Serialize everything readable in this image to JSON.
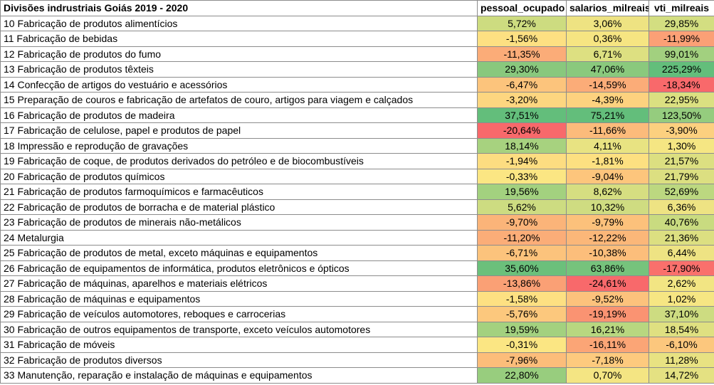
{
  "table": {
    "headers": [
      "Divisões indrustriais Goiás 2019 - 2020",
      "pessoal_ocupado",
      "salarios_milreais",
      "vti_milreais"
    ],
    "rows": [
      {
        "division": "10 Fabricação de produtos alimentícios",
        "pessoal_ocupado": "5,72%",
        "salarios_milreais": "3,06%",
        "vti_milreais": "29,85%",
        "colors": [
          "#cddc80",
          "#eee382",
          "#d3de81"
        ]
      },
      {
        "division": "11 Fabricação de bebidas",
        "pessoal_ocupado": "-1,56%",
        "salarios_milreais": "0,36%",
        "vti_milreais": "-11,99%",
        "colors": [
          "#fde082",
          "#f6e582",
          "#fba076"
        ]
      },
      {
        "division": "12 Fabricação de produtos do fumo",
        "pessoal_ocupado": "-11,35%",
        "salarios_milreais": "6,71%",
        "vti_milreais": "99,01%",
        "colors": [
          "#fbac78",
          "#dde081",
          "#a2d07f"
        ]
      },
      {
        "division": "13 Fabricação de produtos têxteis",
        "pessoal_ocupado": "29,30%",
        "salarios_milreais": "47,06%",
        "vti_milreais": "225,29%",
        "colors": [
          "#89c87d",
          "#8ac97d",
          "#63be7b"
        ]
      },
      {
        "division": "14 Confecção de artigos do vestuário e acessórios",
        "pessoal_ocupado": "-6,47%",
        "salarios_milreais": "-14,59%",
        "vti_milreais": "-18,34%",
        "colors": [
          "#fcc47c",
          "#fbac78",
          "#f8696b"
        ]
      },
      {
        "division": "15 Preparação de couros e fabricação de artefatos de couro, artigos para viagem e calçados",
        "pessoal_ocupado": "-3,20%",
        "salarios_milreais": "-4,39%",
        "vti_milreais": "22,95%",
        "colors": [
          "#fdd680",
          "#fdd27f",
          "#dbe081"
        ]
      },
      {
        "division": "16 Fabricação de produtos de madeira",
        "pessoal_ocupado": "37,51%",
        "salarios_milreais": "75,21%",
        "vti_milreais": "123,50%",
        "colors": [
          "#63be7b",
          "#63be7b",
          "#95cc7e"
        ]
      },
      {
        "division": "17 Fabricação de celulose, papel e produtos de papel",
        "pessoal_ocupado": "-20,64%",
        "salarios_milreais": "-11,66%",
        "vti_milreais": "-3,90%",
        "colors": [
          "#f8696b",
          "#fcbb7b",
          "#fcd07f"
        ]
      },
      {
        "division": "18 Impressão e reprodução de gravações",
        "pessoal_ocupado": "18,14%",
        "salarios_milreais": "4,11%",
        "vti_milreais": "1,30%",
        "colors": [
          "#a7d27f",
          "#e8e382",
          "#f5e683"
        ]
      },
      {
        "division": "19 Fabricação de coque, de produtos derivados do petróleo e de biocombustíveis",
        "pessoal_ocupado": "-1,94%",
        "salarios_milreais": "-1,81%",
        "vti_milreais": "21,57%",
        "colors": [
          "#fddd81",
          "#fde081",
          "#dcdf81"
        ]
      },
      {
        "division": "20 Fabricação de produtos químicos",
        "pessoal_ocupado": "-0,33%",
        "salarios_milreais": "-9,04%",
        "vti_milreais": "21,79%",
        "colors": [
          "#fbe683",
          "#fdc57c",
          "#dcdf81"
        ]
      },
      {
        "division": "21 Fabricação de produtos farmoquímicos e farmacêuticos",
        "pessoal_ocupado": "19,56%",
        "salarios_milreais": "8,62%",
        "vti_milreais": "52,69%",
        "colors": [
          "#a3d17f",
          "#d6de81",
          "#bcd880"
        ]
      },
      {
        "division": "22 Fabricação de produtos de borracha e de material plástico",
        "pessoal_ocupado": "5,62%",
        "salarios_milreais": "10,32%",
        "vti_milreais": "6,36%",
        "colors": [
          "#cddc81",
          "#cfdc81",
          "#eee383"
        ]
      },
      {
        "division": "23 Fabricação de produtos de minerais não-metálicos",
        "pessoal_ocupado": "-9,70%",
        "salarios_milreais": "-9,79%",
        "vti_milreais": "40,76%",
        "colors": [
          "#fbb479",
          "#fcc17b",
          "#c9db80"
        ]
      },
      {
        "division": "24 Metalurgia",
        "pessoal_ocupado": "-11,20%",
        "salarios_milreais": "-12,22%",
        "vti_milreais": "21,36%",
        "colors": [
          "#fbad78",
          "#fbb779",
          "#dcdf81"
        ]
      },
      {
        "division": "25 Fabricação de produtos de metal, exceto máquinas e equipamentos",
        "pessoal_ocupado": "-6,71%",
        "salarios_milreais": "-10,38%",
        "vti_milreais": "6,44%",
        "colors": [
          "#fcc37c",
          "#fcbe7b",
          "#eee383"
        ]
      },
      {
        "division": "26 Fabricação de equipamentos de informática, produtos eletrônicos e ópticos",
        "pessoal_ocupado": "35,60%",
        "salarios_milreais": "63,86%",
        "vti_milreais": "-17,90%",
        "colors": [
          "#6bc07b",
          "#76c37c",
          "#f9706c"
        ]
      },
      {
        "division": "27 Fabricação de máquinas, aparelhos e materiais elétricos",
        "pessoal_ocupado": "-13,86%",
        "salarios_milreais": "-24,61%",
        "vti_milreais": "2,62%",
        "colors": [
          "#faa075",
          "#f8696b",
          "#f2e583"
        ]
      },
      {
        "division": "28 Fabricação de máquinas e equipamentos",
        "pessoal_ocupado": "-1,58%",
        "salarios_milreais": "-9,52%",
        "vti_milreais": "1,02%",
        "colors": [
          "#fde082",
          "#fcc27c",
          "#f6e683"
        ]
      },
      {
        "division": "29 Fabricação de veículos automotores, reboques e carrocerias",
        "pessoal_ocupado": "-5,76%",
        "salarios_milreais": "-19,19%",
        "vti_milreais": "37,10%",
        "colors": [
          "#fcc87d",
          "#fa9372",
          "#cddc81"
        ]
      },
      {
        "division": "30 Fabricação de outros equipamentos de transporte, exceto veículos automotores",
        "pessoal_ocupado": "19,59%",
        "salarios_milreais": "16,21%",
        "vti_milreais": "18,54%",
        "colors": [
          "#a3d17f",
          "#b8d780",
          "#dfe081"
        ]
      },
      {
        "division": "31 Fabricação de móveis",
        "pessoal_ocupado": "-0,31%",
        "salarios_milreais": "-16,11%",
        "vti_milreais": "-6,10%",
        "colors": [
          "#fbe683",
          "#fba576",
          "#fcc77d"
        ]
      },
      {
        "division": "32 Fabricação de produtos diversos",
        "pessoal_ocupado": "-7,96%",
        "salarios_milreais": "-7,18%",
        "vti_milreais": "11,28%",
        "colors": [
          "#fcbd7a",
          "#fdca7e",
          "#e8e282"
        ]
      },
      {
        "division": "33 Manutenção, reparação e instalação de máquinas e equipamentos",
        "pessoal_ocupado": "22,80%",
        "salarios_milreais": "0,70%",
        "vti_milreais": "14,72%",
        "colors": [
          "#98cd7e",
          "#f4e583",
          "#e4e182"
        ]
      }
    ]
  }
}
